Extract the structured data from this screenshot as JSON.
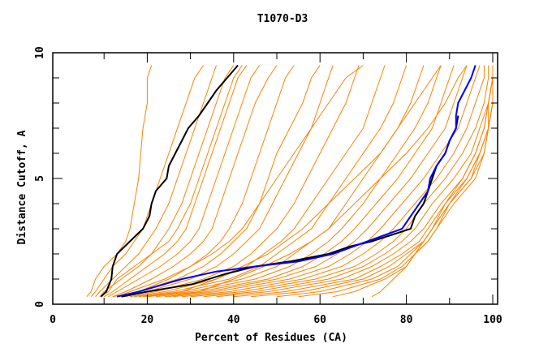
{
  "chart_data": {
    "type": "line",
    "title": "T1070-D3",
    "xlabel": "Percent of Residues (CA)",
    "ylabel": "Distance Cutoff, A",
    "xlim": [
      0,
      100
    ],
    "ylim": [
      0,
      10
    ],
    "x_ticks": [
      "0",
      "20",
      "40",
      "60",
      "80",
      "100"
    ],
    "x_tick_values": [
      0,
      20,
      40,
      60,
      80,
      100
    ],
    "y_ticks": [
      "0",
      "5",
      "10"
    ],
    "y_tick_values": [
      0,
      5,
      10
    ],
    "grid": false,
    "colors": {
      "models": "#ff8000",
      "highlight_black": "#000000",
      "highlight_blue": "#0000ff"
    },
    "model_levels": [
      0.3,
      0.5,
      1,
      1.5,
      2,
      2.5,
      3,
      4,
      5,
      6,
      7,
      8,
      9,
      9.5
    ],
    "model_series": [
      [
        6,
        7,
        8,
        10,
        13,
        15,
        16,
        17,
        18,
        18.5,
        19,
        20,
        20,
        21
      ],
      [
        7,
        8,
        10,
        12,
        15,
        17,
        19,
        21,
        23,
        25,
        27,
        29,
        31,
        33
      ],
      [
        8,
        9,
        12,
        15,
        18,
        20,
        22,
        25,
        27,
        29,
        31,
        33,
        35,
        36
      ],
      [
        9,
        10,
        14,
        18,
        21,
        23,
        25,
        28,
        30,
        32,
        34,
        36,
        38,
        40
      ],
      [
        9,
        11,
        13,
        17,
        21,
        25,
        27,
        30,
        32,
        34,
        36,
        38,
        40,
        42
      ],
      [
        10,
        12,
        16,
        20,
        24,
        27,
        29,
        31,
        33,
        35,
        37,
        39,
        41,
        43
      ],
      [
        11,
        13,
        18,
        23,
        27,
        30,
        32,
        34,
        36,
        38,
        40,
        42,
        44,
        46
      ],
      [
        12,
        15,
        21,
        26,
        30,
        33,
        35,
        37,
        39,
        41,
        43,
        45,
        48,
        50
      ],
      [
        12,
        18,
        25,
        30,
        35,
        39,
        42,
        46,
        50,
        54,
        58,
        62,
        66,
        70
      ],
      [
        13,
        16,
        24,
        30,
        34,
        37,
        39,
        42,
        44,
        46,
        48,
        50,
        52,
        54
      ],
      [
        14,
        18,
        27,
        33,
        37,
        40,
        43,
        46,
        48,
        50,
        53,
        56,
        58,
        60
      ],
      [
        15,
        20,
        30,
        36,
        40,
        43,
        46,
        49,
        52,
        55,
        58,
        60,
        62,
        63
      ],
      [
        16,
        22,
        33,
        40,
        44,
        47,
        50,
        54,
        57,
        60,
        63,
        66,
        68,
        69
      ],
      [
        17,
        24,
        36,
        43,
        47,
        51,
        54,
        58,
        62,
        66,
        70,
        72,
        74,
        75
      ],
      [
        18,
        26,
        39,
        46,
        50,
        54,
        58,
        62,
        66,
        70,
        74,
        77,
        79,
        80
      ],
      [
        19,
        28,
        42,
        50,
        54,
        58,
        62,
        66,
        70,
        74,
        78,
        81,
        83,
        84
      ],
      [
        20,
        28,
        36,
        42,
        48,
        52,
        56,
        62,
        68,
        74,
        78,
        82,
        86,
        88
      ],
      [
        20,
        30,
        45,
        53,
        58,
        62,
        65,
        70,
        74,
        78,
        82,
        85,
        87,
        88
      ],
      [
        22,
        32,
        48,
        56,
        61,
        65,
        68,
        73,
        78,
        82,
        86,
        88,
        90,
        91
      ],
      [
        24,
        34,
        50,
        59,
        64,
        68,
        71,
        76,
        81,
        85,
        89,
        91,
        93,
        94
      ],
      [
        25,
        32,
        40,
        47,
        53,
        58,
        62,
        68,
        74,
        80,
        85,
        89,
        92,
        94
      ],
      [
        26,
        36,
        53,
        62,
        67,
        71,
        74,
        79,
        84,
        88,
        92,
        94,
        96,
        97
      ],
      [
        28,
        39,
        56,
        65,
        70,
        74,
        77,
        82,
        87,
        91,
        94,
        96,
        98,
        98
      ],
      [
        30,
        42,
        59,
        68,
        73,
        77,
        80,
        84,
        89,
        93,
        96,
        98,
        99,
        99
      ],
      [
        33,
        45,
        62,
        70,
        75,
        79,
        82,
        86,
        91,
        95,
        97,
        99,
        100,
        100
      ],
      [
        36,
        48,
        65,
        72,
        77,
        81,
        84,
        88,
        93,
        96,
        98,
        99,
        100,
        100
      ],
      [
        40,
        52,
        68,
        74,
        79,
        83,
        85,
        89,
        94,
        97,
        99,
        100,
        100,
        100
      ],
      [
        44,
        56,
        70,
        76,
        80,
        84,
        86,
        90,
        95,
        98,
        99,
        100,
        100,
        100
      ],
      [
        50,
        60,
        72,
        78,
        81,
        84,
        86,
        89,
        93,
        96,
        98,
        99,
        100,
        100
      ],
      [
        55,
        64,
        74,
        79,
        82,
        85,
        87,
        90,
        95,
        97,
        99,
        100,
        100,
        100
      ],
      [
        63,
        68,
        75,
        80,
        82,
        85,
        87,
        91,
        96,
        98,
        99,
        100,
        100,
        100
      ],
      [
        72,
        74,
        77,
        80,
        82,
        84,
        86,
        90,
        94,
        97,
        99,
        99,
        100,
        100
      ]
    ],
    "highlight_series": [
      {
        "name": "black-left",
        "color": "#000000",
        "y": [
          0.3,
          0.5,
          1,
          1.5,
          2,
          2.5,
          3,
          3.5,
          4,
          4.5,
          5,
          5.5,
          6,
          6.5,
          7,
          7.5,
          8,
          8.5,
          9,
          9.5
        ],
        "x": [
          9.3,
          10.5,
          11.7,
          12,
          13,
          16,
          19,
          20.5,
          21,
          22,
          24.5,
          25,
          26.5,
          28,
          29.5,
          32,
          34,
          36,
          38.5,
          41
        ]
      },
      {
        "name": "black-right",
        "color": "#000000",
        "y": [
          0.3,
          0.5,
          0.8,
          1.2,
          1.5,
          1.7,
          2,
          2.3,
          2.5,
          3,
          3.5,
          4,
          4.5,
          5,
          5.5,
          6,
          6.5,
          7,
          7.5
        ],
        "x": [
          14,
          20,
          30.5,
          38,
          45,
          53,
          62,
          67,
          72,
          81,
          82,
          84,
          85,
          86,
          87,
          89,
          90,
          91.5,
          92
        ]
      },
      {
        "name": "blue",
        "color": "#0000ff",
        "y": [
          0.3,
          0.5,
          1,
          1.3,
          1.5,
          1.7,
          2,
          2.5,
          3,
          3.5,
          4,
          4.5,
          5,
          5.5,
          6,
          6.5,
          7,
          7.5,
          8,
          8.5,
          9,
          9.5
        ],
        "x": [
          13,
          18,
          28,
          36,
          45,
          55,
          63,
          71,
          79,
          81,
          83,
          85,
          85.5,
          87,
          89,
          90,
          91.5,
          91.5,
          92,
          93.5,
          95,
          96
        ]
      }
    ]
  }
}
